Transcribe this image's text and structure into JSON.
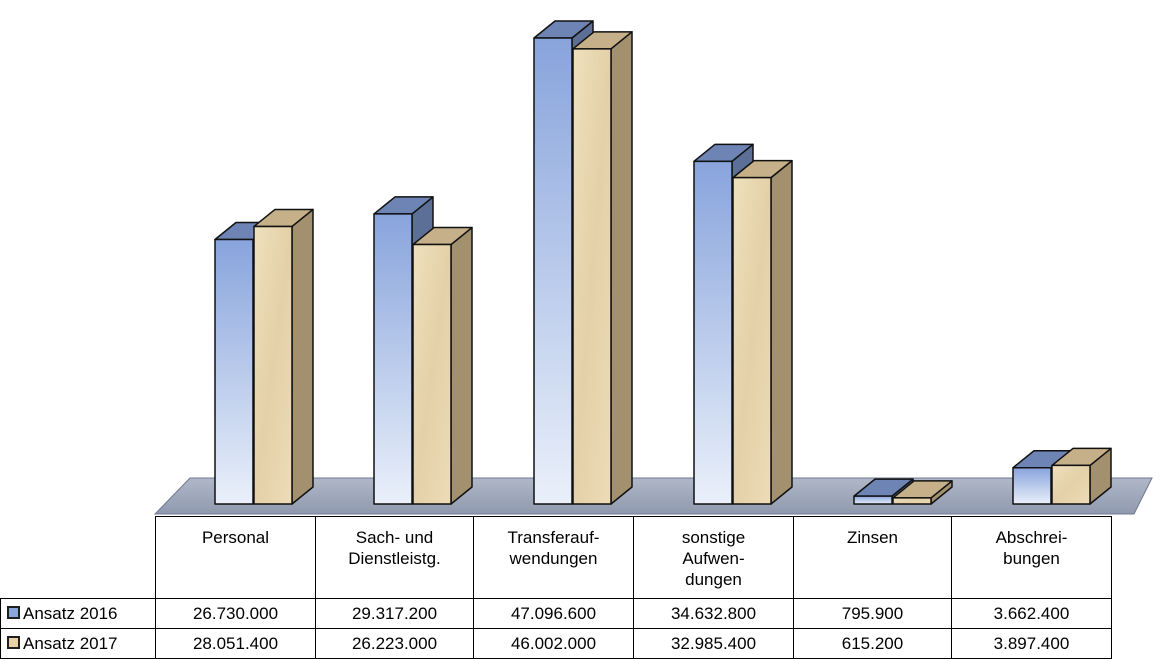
{
  "chart_data": {
    "type": "bar",
    "categories": [
      "Personal",
      "Sach- und\nDienstleistg.",
      "Transferauf-\nwendungen",
      "sonstige\nAufwen-\ndungen",
      "Zinsen",
      "Abschrei-\nbungen"
    ],
    "series": [
      {
        "name": "Ansatz 2016",
        "values": [
          26730000,
          29317200,
          47096600,
          34632800,
          795900,
          3662400
        ],
        "display": [
          "26.730.000",
          "29.317.200",
          "47.096.600",
          "34.632.800",
          "795.900",
          "3.662.400"
        ]
      },
      {
        "name": "Ansatz 2017",
        "values": [
          28051400,
          26223000,
          46002000,
          32985400,
          615200,
          3897400
        ],
        "display": [
          "28.051.400",
          "26.223.000",
          "46.002.000",
          "32.985.400",
          "615.200",
          "3.897.400"
        ]
      }
    ],
    "ylim": [
      0,
      50000000
    ],
    "grid": false,
    "legend": "data-table"
  },
  "colors": {
    "series_2016_light": "#e6ecf8",
    "series_2016_dark": "#8aa6de",
    "series_2016_top": "#6d84b4",
    "series_2016_side": "#5c6f96",
    "series_2017_front": "#ead9b4",
    "series_2017_top": "#c6b08a",
    "series_2017_side": "#a3906e",
    "floor": "#9aa4b8"
  }
}
